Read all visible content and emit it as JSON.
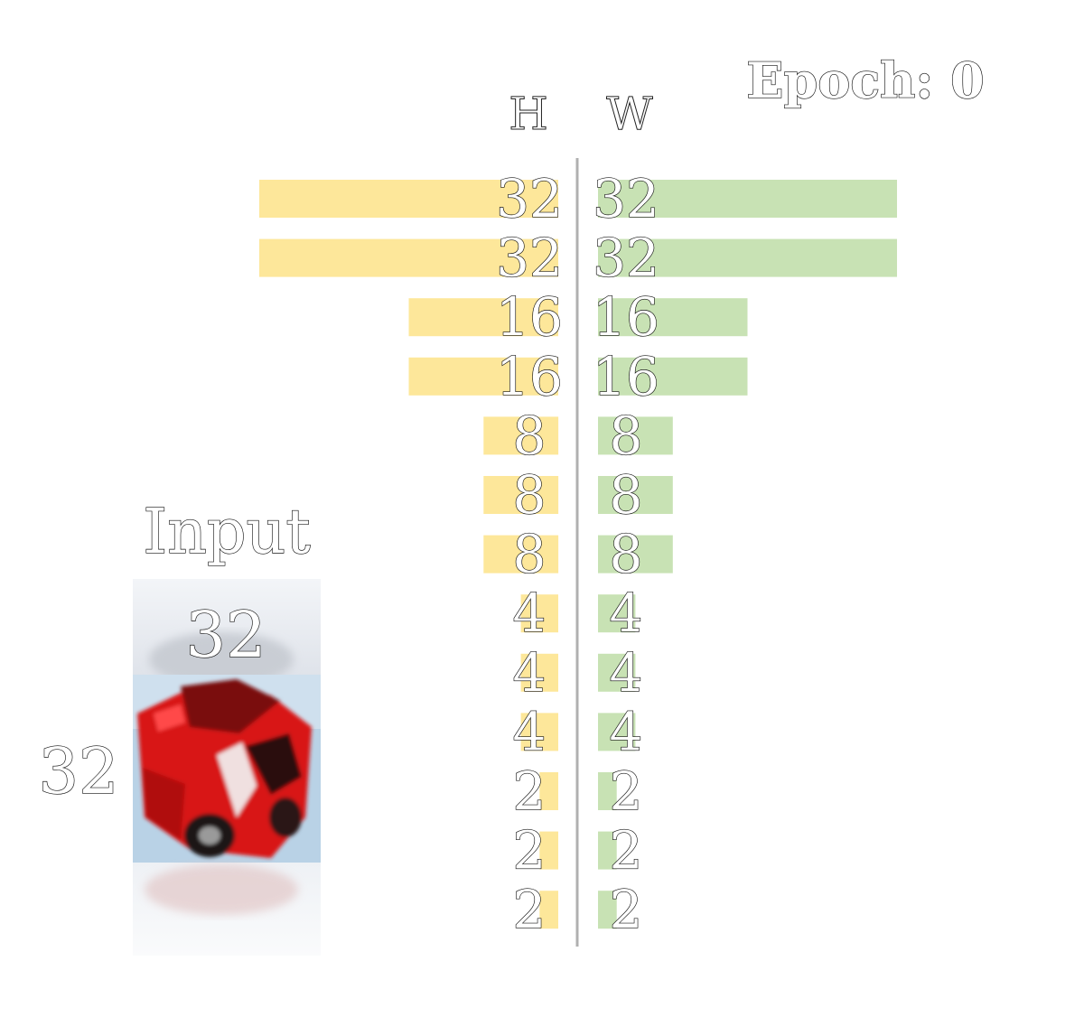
{
  "epoch_label": "Epoch: 0",
  "input": {
    "title": "Input",
    "width_label": "32",
    "height_label": "32"
  },
  "colors": {
    "h_bar": "#fde79a",
    "w_bar": "#c8e2b4",
    "divider": "#b0b0b0"
  },
  "chart_data": {
    "type": "bar",
    "orientation": "horizontal, mirrored about a central axis",
    "series": [
      {
        "name": "H",
        "values": [
          32,
          32,
          16,
          16,
          8,
          8,
          8,
          4,
          4,
          4,
          2,
          2,
          2
        ]
      },
      {
        "name": "W",
        "values": [
          32,
          32,
          16,
          16,
          8,
          8,
          8,
          4,
          4,
          4,
          2,
          2,
          2
        ]
      }
    ],
    "value_max": 32,
    "grid": false
  }
}
